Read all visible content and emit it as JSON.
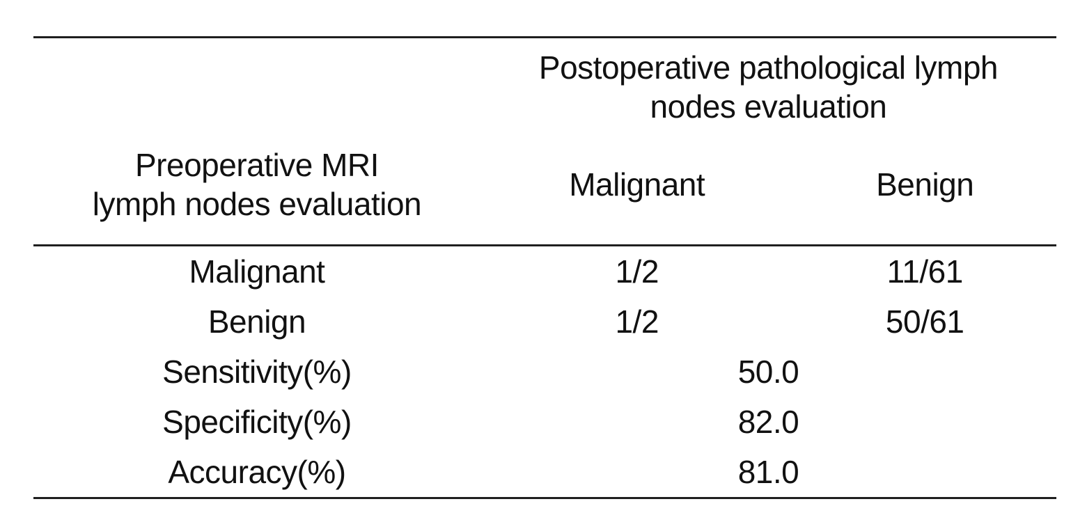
{
  "table": {
    "col_group_header": {
      "line1": "Postoperative pathological lymph",
      "line2": "nodes evaluation"
    },
    "stub_header": {
      "line1": "Preoperative MRI",
      "line2": "lymph nodes evaluation"
    },
    "columns": [
      "Malignant",
      "Benign"
    ],
    "rows": [
      {
        "label": "Malignant",
        "malignant": "1/2",
        "benign": "11/61"
      },
      {
        "label": "Benign",
        "malignant": "1/2",
        "benign": "50/61"
      },
      {
        "label": "Sensitivity(%)",
        "value": "50.0"
      },
      {
        "label": "Specificity(%)",
        "value": "82.0"
      },
      {
        "label": "Accuracy(%)",
        "value": "81.0"
      }
    ]
  },
  "colors": {
    "background": "#ffffff",
    "text": "#111111",
    "rule": "#1f1f1f"
  }
}
